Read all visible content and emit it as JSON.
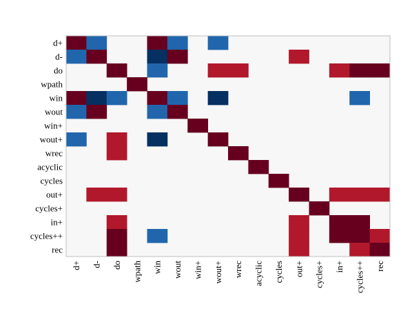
{
  "chart_data": {
    "type": "heatmap",
    "title": "",
    "xlabel": "",
    "ylabel": "",
    "grid": false,
    "legend": "none",
    "colorbar": false,
    "rows": [
      "d+",
      "d-",
      "do",
      "wpath",
      "win",
      "wout",
      "win+",
      "wout+",
      "wrec",
      "acyclic",
      "cycles",
      "out+",
      "cycles+",
      "in+",
      "cycles++",
      "rec"
    ],
    "columns": [
      "d+",
      "d-",
      "do",
      "wpath",
      "win",
      "wout",
      "win+",
      "wout+",
      "wrec",
      "acyclic",
      "cycles",
      "out+",
      "cycles+",
      "in+",
      "cycles++",
      "rec"
    ],
    "value_range": [
      -1,
      1
    ],
    "colors": {
      "strong_positive": "#67001f",
      "positive": "#b2182b",
      "neutral": "#f7f7f7",
      "negative": "#2166ac",
      "strong_negative": "#053061"
    },
    "values": [
      [
        1,
        -0.7,
        0,
        0,
        1,
        -0.7,
        0,
        -0.7,
        0,
        0,
        0,
        0,
        0,
        0,
        0,
        0
      ],
      [
        -0.7,
        1,
        0,
        0,
        -1,
        1,
        0,
        0,
        0,
        0,
        0,
        0.7,
        0,
        0,
        0,
        0
      ],
      [
        0,
        0,
        1,
        0,
        -0.7,
        0,
        0,
        0.7,
        0.7,
        0,
        0,
        0,
        0,
        0.7,
        1,
        1
      ],
      [
        0,
        0,
        0,
        1,
        0,
        0,
        0,
        0,
        0,
        0,
        0,
        0,
        0,
        0,
        0,
        0
      ],
      [
        1,
        -1,
        -0.7,
        0,
        1,
        -0.7,
        0,
        -1,
        0,
        0,
        0,
        0,
        0,
        0,
        -0.7,
        0
      ],
      [
        -0.7,
        1,
        0,
        0,
        -0.7,
        1,
        0,
        0,
        0,
        0,
        0,
        0,
        0,
        0,
        0,
        0
      ],
      [
        0,
        0,
        0,
        0,
        0,
        0,
        1,
        0,
        0,
        0,
        0,
        0,
        0,
        0,
        0,
        0
      ],
      [
        -0.7,
        0,
        0.7,
        0,
        -1,
        0,
        0,
        1,
        0,
        0,
        0,
        0,
        0,
        0,
        0,
        0
      ],
      [
        0,
        0,
        0.7,
        0,
        0,
        0,
        0,
        0,
        1,
        0,
        0,
        0,
        0,
        0,
        0,
        0
      ],
      [
        0,
        0,
        0,
        0,
        0,
        0,
        0,
        0,
        0,
        1,
        0,
        0,
        0,
        0,
        0,
        0
      ],
      [
        0,
        0,
        0,
        0,
        0,
        0,
        0,
        0,
        0,
        0,
        1,
        0,
        0,
        0,
        0,
        0
      ],
      [
        0,
        0.7,
        0.7,
        0,
        0,
        0,
        0,
        0,
        0,
        0,
        0,
        1,
        0,
        0.7,
        0.7,
        0.7
      ],
      [
        0,
        0,
        0,
        0,
        0,
        0,
        0,
        0,
        0,
        0,
        0,
        0,
        1,
        0,
        0,
        0
      ],
      [
        0,
        0,
        0.7,
        0,
        0,
        0,
        0,
        0,
        0,
        0,
        0,
        0.7,
        0,
        1,
        1,
        0
      ],
      [
        0,
        0,
        1,
        0,
        -0.7,
        0,
        0,
        0,
        0,
        0,
        0,
        0.7,
        0,
        1,
        1,
        0.7
      ],
      [
        0,
        0,
        1,
        0,
        0,
        0,
        0,
        0,
        0,
        0,
        0,
        0.7,
        0,
        0,
        0.7,
        1
      ]
    ]
  }
}
